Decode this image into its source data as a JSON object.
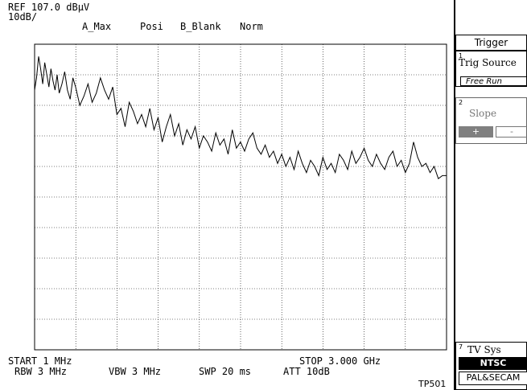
{
  "header": {
    "ref": "REF 107.0 dBµV",
    "scale": "10dB/",
    "trace_mode": "A_Max",
    "detector": "Posi",
    "trace_b": "B_Blank",
    "mode": "Norm"
  },
  "footer": {
    "start": "START 1 MHz",
    "stop": "STOP 3.000 GHz",
    "rbw": "RBW 3 MHz",
    "vbw": "VBW 3 MHz",
    "swp": "SWP 20 ms",
    "att": "ATT 10dB",
    "model": "TP501"
  },
  "softkeys": {
    "title": "Trigger",
    "trig_source": {
      "num": "1",
      "label": "Trig Source",
      "value": "Free Run"
    },
    "slope": {
      "num": "2",
      "label": "Slope",
      "plus": "+",
      "minus": "-"
    },
    "tv_sys": {
      "num": "7",
      "label": "TV Sys",
      "selected": "NTSC",
      "other": "PAL&SECAM"
    }
  },
  "colors": {
    "background": "#ffffff",
    "trace": "#000000",
    "grid": "#000000",
    "selected_bg": "#000000",
    "disabled_bg": "#808080"
  },
  "chart_data": {
    "type": "line",
    "xlabel": "",
    "ylabel": "",
    "x_range_mhz": [
      1,
      3000
    ],
    "y_range_dbuv": [
      7,
      107
    ],
    "grid": true,
    "series": [
      {
        "x": [
          1,
          15,
          30,
          45,
          60,
          75,
          90,
          105,
          120,
          135,
          150,
          165,
          180,
          200,
          220,
          240,
          260,
          280,
          300,
          330,
          360,
          390,
          420,
          450,
          480,
          510,
          540,
          570,
          600,
          630,
          660,
          690,
          720,
          750,
          780,
          810,
          840,
          870,
          900,
          930,
          960,
          990,
          1020,
          1050,
          1080,
          1110,
          1140,
          1170,
          1200,
          1230,
          1260,
          1290,
          1320,
          1350,
          1380,
          1410,
          1440,
          1470,
          1500,
          1530,
          1560,
          1590,
          1620,
          1650,
          1680,
          1710,
          1740,
          1770,
          1800,
          1830,
          1860,
          1890,
          1920,
          1950,
          1980,
          2010,
          2040,
          2070,
          2100,
          2130,
          2160,
          2190,
          2220,
          2250,
          2280,
          2310,
          2340,
          2370,
          2400,
          2430,
          2460,
          2490,
          2520,
          2550,
          2580,
          2610,
          2640,
          2670,
          2700,
          2730,
          2760,
          2790,
          2820,
          2850,
          2880,
          2910,
          2940,
          2970,
          3000
        ],
        "y": [
          92,
          96,
          103,
          99,
          94,
          101,
          97,
          93,
          99,
          95,
          92,
          97,
          91,
          94,
          98,
          92,
          89,
          96,
          93,
          87,
          90,
          94,
          88,
          91,
          96,
          92,
          89,
          93,
          84,
          86,
          80,
          88,
          85,
          81,
          84,
          80,
          86,
          79,
          83,
          75,
          80,
          84,
          77,
          81,
          74,
          79,
          76,
          80,
          73,
          77,
          75,
          72,
          78,
          74,
          76,
          71,
          79,
          73,
          75,
          72,
          76,
          78,
          73,
          71,
          74,
          70,
          72,
          68,
          71,
          67,
          70,
          66,
          72,
          68,
          65,
          69,
          67,
          64,
          70,
          66,
          68,
          65,
          71,
          69,
          66,
          72,
          68,
          70,
          73,
          69,
          67,
          71,
          68,
          66,
          70,
          72,
          67,
          69,
          65,
          68,
          75,
          70,
          67,
          68,
          65,
          67,
          63,
          64,
          64
        ]
      }
    ]
  }
}
